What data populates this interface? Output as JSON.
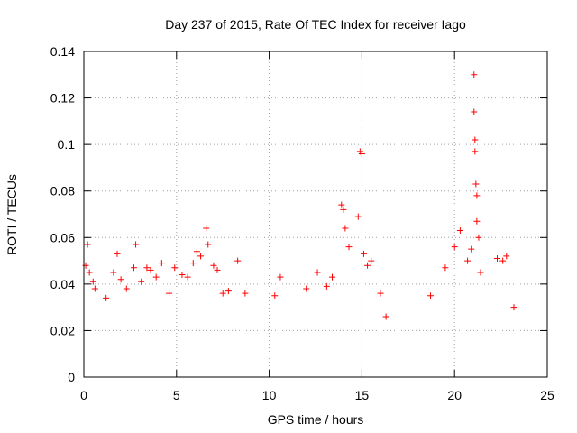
{
  "chart_data": {
    "type": "scatter",
    "title": "Day 237 of 2015, Rate Of TEC Index for receiver Iago",
    "xlabel": "GPS time / hours",
    "ylabel": "ROTI / TECUs",
    "xlim": [
      0,
      25
    ],
    "ylim": [
      0,
      0.14
    ],
    "x_ticks": [
      0,
      5,
      10,
      15,
      20,
      25
    ],
    "y_ticks": [
      0,
      0.02,
      0.04,
      0.06,
      0.08,
      0.1,
      0.12,
      0.14
    ],
    "x_tick_labels": [
      "0",
      "5",
      "10",
      "15",
      "20",
      "25"
    ],
    "y_tick_labels": [
      "0",
      "0.02",
      "0.04",
      "0.06",
      "0.08",
      "0.1",
      "0.12",
      "0.14"
    ],
    "grid": true,
    "marker": "+",
    "color": "#ff0000",
    "series": [
      {
        "name": "ROTI",
        "points": [
          [
            0.1,
            0.048
          ],
          [
            0.2,
            0.057
          ],
          [
            0.3,
            0.045
          ],
          [
            0.5,
            0.041
          ],
          [
            0.6,
            0.038
          ],
          [
            1.2,
            0.034
          ],
          [
            1.6,
            0.045
          ],
          [
            1.8,
            0.053
          ],
          [
            2.0,
            0.042
          ],
          [
            2.3,
            0.038
          ],
          [
            2.7,
            0.047
          ],
          [
            2.8,
            0.057
          ],
          [
            3.1,
            0.041
          ],
          [
            3.4,
            0.047
          ],
          [
            3.6,
            0.046
          ],
          [
            3.9,
            0.043
          ],
          [
            4.2,
            0.049
          ],
          [
            4.6,
            0.036
          ],
          [
            4.9,
            0.047
          ],
          [
            5.3,
            0.044
          ],
          [
            5.6,
            0.043
          ],
          [
            5.9,
            0.049
          ],
          [
            6.1,
            0.054
          ],
          [
            6.3,
            0.052
          ],
          [
            6.6,
            0.064
          ],
          [
            6.7,
            0.057
          ],
          [
            7.0,
            0.048
          ],
          [
            7.2,
            0.046
          ],
          [
            7.5,
            0.036
          ],
          [
            7.8,
            0.037
          ],
          [
            8.3,
            0.05
          ],
          [
            8.7,
            0.036
          ],
          [
            10.3,
            0.035
          ],
          [
            10.6,
            0.043
          ],
          [
            12.0,
            0.038
          ],
          [
            12.6,
            0.045
          ],
          [
            13.1,
            0.039
          ],
          [
            13.4,
            0.043
          ],
          [
            13.9,
            0.074
          ],
          [
            14.0,
            0.072
          ],
          [
            14.1,
            0.064
          ],
          [
            14.3,
            0.056
          ],
          [
            14.8,
            0.069
          ],
          [
            14.9,
            0.097
          ],
          [
            15.0,
            0.096
          ],
          [
            15.1,
            0.053
          ],
          [
            15.3,
            0.048
          ],
          [
            15.5,
            0.05
          ],
          [
            16.0,
            0.036
          ],
          [
            16.3,
            0.026
          ],
          [
            18.7,
            0.035
          ],
          [
            19.5,
            0.047
          ],
          [
            20.0,
            0.056
          ],
          [
            20.3,
            0.063
          ],
          [
            20.7,
            0.05
          ],
          [
            20.9,
            0.055
          ],
          [
            21.05,
            0.13
          ],
          [
            21.05,
            0.114
          ],
          [
            21.1,
            0.102
          ],
          [
            21.1,
            0.097
          ],
          [
            21.15,
            0.083
          ],
          [
            21.2,
            0.078
          ],
          [
            21.2,
            0.067
          ],
          [
            21.3,
            0.06
          ],
          [
            21.4,
            0.045
          ],
          [
            22.3,
            0.051
          ],
          [
            22.6,
            0.05
          ],
          [
            22.8,
            0.052
          ],
          [
            23.2,
            0.03
          ]
        ]
      }
    ]
  }
}
